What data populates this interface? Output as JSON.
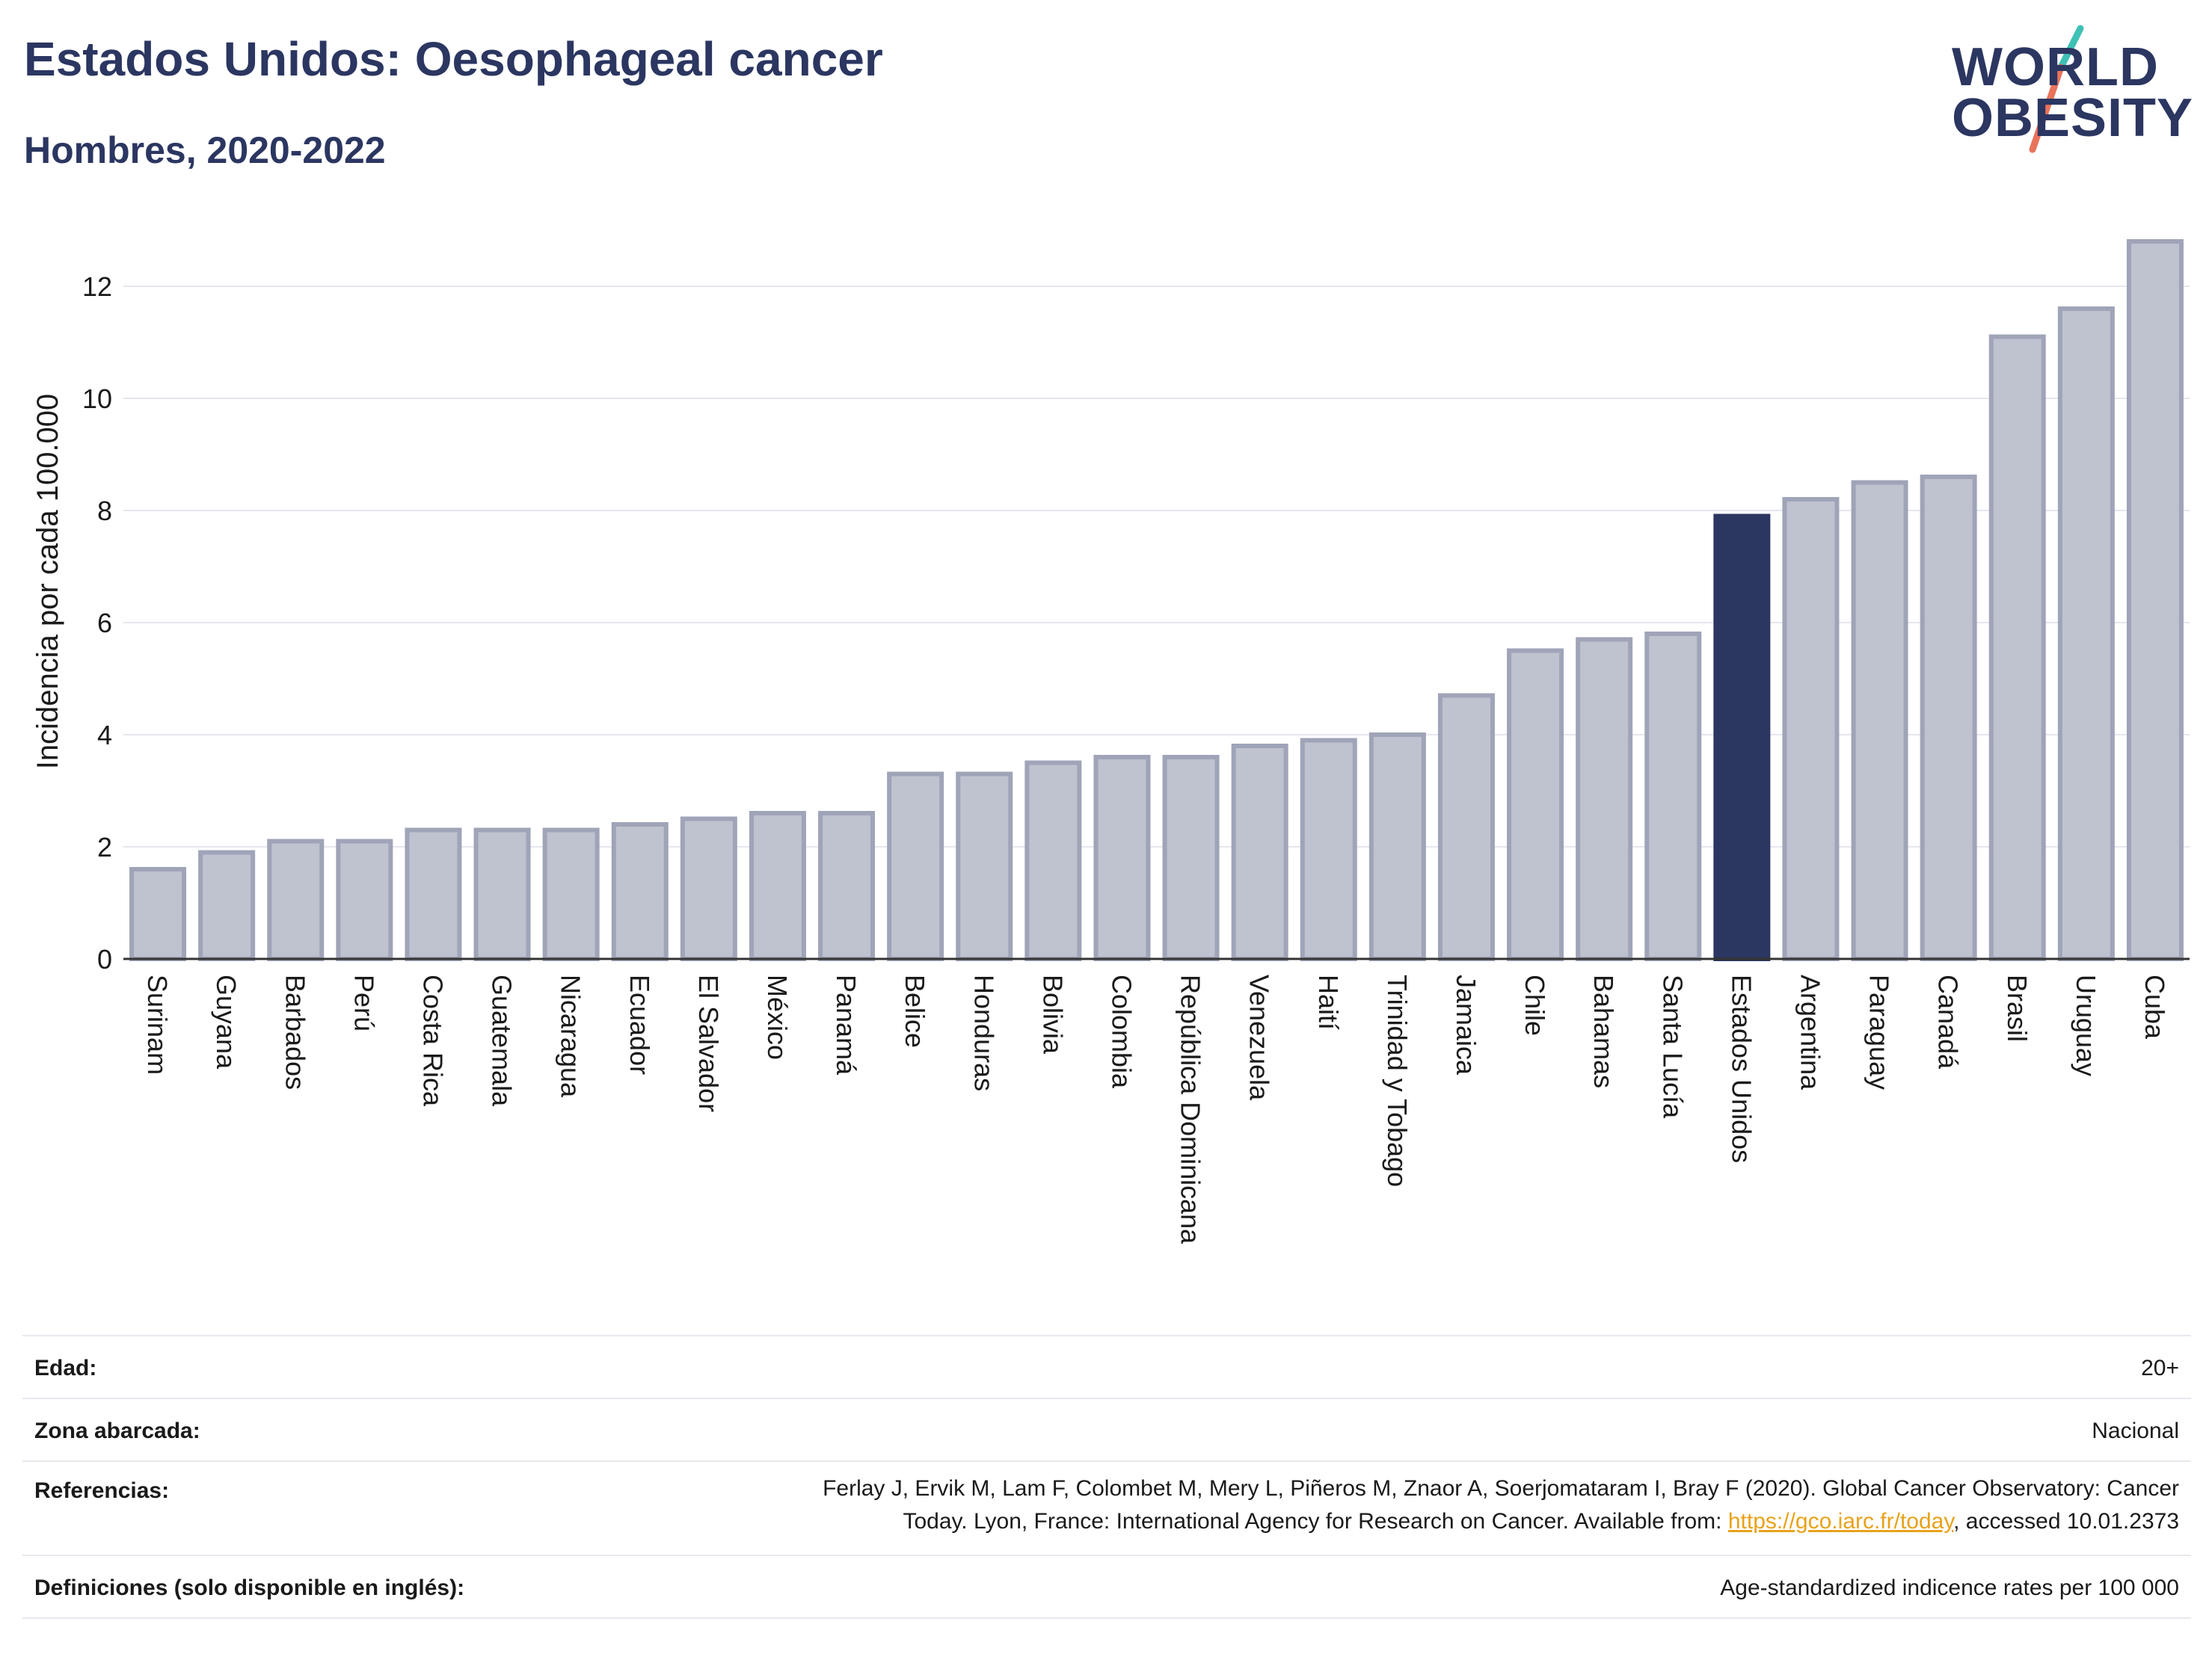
{
  "header": {
    "title": "Estados Unidos: Oesophageal cancer",
    "subtitle": "Hombres, 2020-2022"
  },
  "logo": {
    "line1": "WORLD",
    "line2": "OBESITY",
    "slash_colors": [
      "#3ec1b4",
      "#e9735b"
    ]
  },
  "colors": {
    "bar": "#bfc2cf",
    "bar_stroke": "#9fa4b8",
    "highlight": "#2b3661",
    "grid": "#e6e6ee",
    "axis": "#333333"
  },
  "chart_data": {
    "type": "bar",
    "ylabel": "Incidencia por cada 100.000",
    "ylim": [
      0,
      13
    ],
    "yticks": [
      0,
      2,
      4,
      6,
      8,
      10,
      12
    ],
    "grid": true,
    "highlight": "Estados Unidos",
    "categories": [
      "Surinam",
      "Guyana",
      "Barbados",
      "Perú",
      "Costa Rica",
      "Guatemala",
      "Nicaragua",
      "Ecuador",
      "El Salvador",
      "México",
      "Panamá",
      "Belice",
      "Honduras",
      "Bolivia",
      "Colombia",
      "República Dominicana",
      "Venezuela",
      "Haití",
      "Trinidad y Tobago",
      "Jamaica",
      "Chile",
      "Bahamas",
      "Santa Lucía",
      "Estados Unidos",
      "Argentina",
      "Paraguay",
      "Canadá",
      "Brasil",
      "Uruguay",
      "Cuba"
    ],
    "values": [
      1.6,
      1.9,
      2.1,
      2.1,
      2.3,
      2.3,
      2.3,
      2.4,
      2.5,
      2.6,
      2.6,
      3.3,
      3.3,
      3.5,
      3.6,
      3.6,
      3.8,
      3.9,
      4.0,
      4.7,
      5.5,
      5.7,
      5.8,
      7.9,
      8.2,
      8.5,
      8.6,
      11.1,
      11.6,
      12.8
    ]
  },
  "meta": {
    "edad_label": "Edad:",
    "edad_value": "20+",
    "zona_label": "Zona abarcada:",
    "zona_value": "Nacional",
    "ref_label": "Referencias:",
    "ref_line1": "Ferlay J, Ervik M, Lam F, Colombet M, Mery L, Piñeros M, Znaor A, Soerjomataram I, Bray F (2020). Global Cancer Observatory: Cancer",
    "ref_line2_pre": "Today. Lyon, France: International Agency for Research on Cancer. Available from: ",
    "ref_link": "https://gco.iarc.fr/today",
    "ref_line2_post": ", accessed 10.01.2373",
    "def_label": "Definiciones (solo disponible en inglés):",
    "def_value": "Age-standardized indicence rates per 100 000"
  }
}
